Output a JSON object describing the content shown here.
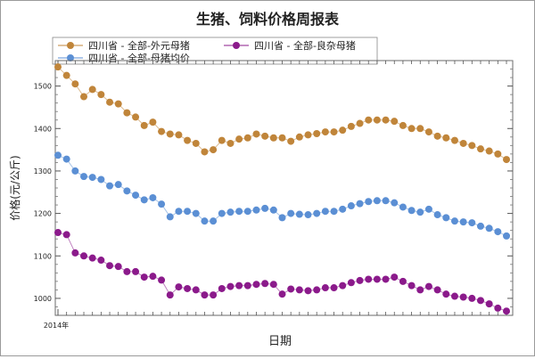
{
  "chart_data": {
    "type": "line",
    "title": "生猪、饲料价格周报表",
    "xlabel": "日期",
    "ylabel": "价格(元/公斤)",
    "x_start_label": "2014年",
    "ylim": [
      960,
      1560
    ],
    "yticks": [
      1000,
      1100,
      1200,
      1300,
      1400,
      1500
    ],
    "grid": false,
    "legend_position": "top-left",
    "series": [
      {
        "name": "四川省 - 全部-外元母猪",
        "color": "#c0853a",
        "values": [
          1545,
          1525,
          1505,
          1475,
          1492,
          1480,
          1462,
          1458,
          1437,
          1427,
          1407,
          1415,
          1393,
          1387,
          1385,
          1372,
          1365,
          1345,
          1350,
          1372,
          1365,
          1375,
          1378,
          1387,
          1382,
          1378,
          1378,
          1370,
          1380,
          1385,
          1388,
          1392,
          1392,
          1396,
          1405,
          1412,
          1420,
          1420,
          1420,
          1417,
          1407,
          1400,
          1400,
          1392,
          1382,
          1378,
          1372,
          1365,
          1360,
          1352,
          1347,
          1340,
          1327
        ]
      },
      {
        "name": "四川省 - 全部-良杂母猪",
        "color": "#8b1a8b",
        "values": [
          1155,
          1150,
          1107,
          1100,
          1095,
          1090,
          1077,
          1075,
          1063,
          1063,
          1050,
          1052,
          1043,
          1008,
          1027,
          1023,
          1020,
          1008,
          1008,
          1023,
          1028,
          1030,
          1030,
          1033,
          1035,
          1033,
          1010,
          1022,
          1020,
          1018,
          1020,
          1025,
          1025,
          1030,
          1037,
          1042,
          1045,
          1045,
          1045,
          1050,
          1040,
          1030,
          1020,
          1028,
          1020,
          1010,
          1005,
          1003,
          1000,
          995,
          987,
          977,
          970
        ]
      },
      {
        "name": "四川省 - 全部-母猪均价",
        "color": "#5b8fd4",
        "values": [
          1337,
          1328,
          1300,
          1287,
          1285,
          1280,
          1265,
          1268,
          1253,
          1243,
          1232,
          1237,
          1222,
          1192,
          1205,
          1205,
          1200,
          1182,
          1182,
          1200,
          1203,
          1205,
          1205,
          1208,
          1212,
          1208,
          1190,
          1200,
          1198,
          1197,
          1200,
          1205,
          1205,
          1210,
          1218,
          1223,
          1228,
          1230,
          1230,
          1225,
          1215,
          1207,
          1203,
          1210,
          1197,
          1190,
          1182,
          1180,
          1178,
          1170,
          1165,
          1157,
          1147
        ]
      }
    ]
  }
}
